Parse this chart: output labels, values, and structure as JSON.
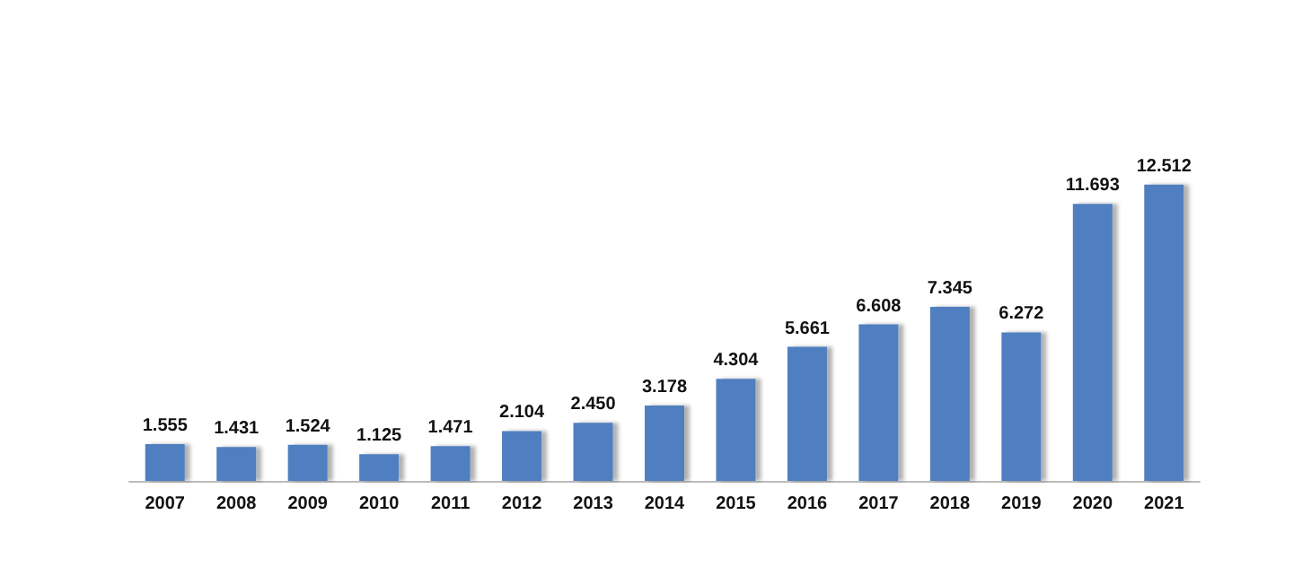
{
  "chart_data": {
    "type": "bar",
    "categories": [
      "2007",
      "2008",
      "2009",
      "2010",
      "2011",
      "2012",
      "2013",
      "2014",
      "2015",
      "2016",
      "2017",
      "2018",
      "2019",
      "2020",
      "2021"
    ],
    "values": [
      1.555,
      1.431,
      1.524,
      1.125,
      1.471,
      2.104,
      2.45,
      3.178,
      4.304,
      5.661,
      6.608,
      7.345,
      6.272,
      11.693,
      12.512
    ],
    "value_labels": [
      "1.555",
      "1.431",
      "1.524",
      "1.125",
      "1.471",
      "2.104",
      "2.450",
      "3.178",
      "4.304",
      "5.661",
      "6.608",
      "7.345",
      "6.272",
      "11.693",
      "12.512"
    ],
    "color": "#4f7fc0"
  }
}
